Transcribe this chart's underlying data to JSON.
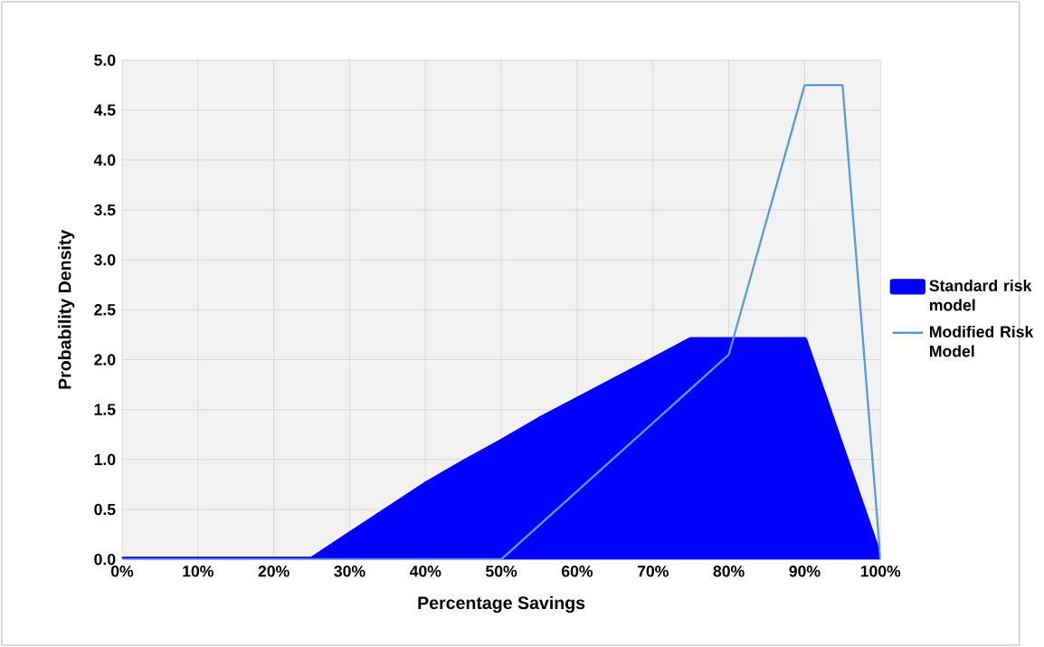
{
  "chart_data": {
    "type": "area",
    "xlabel": "Percentage Savings",
    "ylabel": "Probability Density",
    "xlim": [
      0,
      100
    ],
    "ylim": [
      0,
      5
    ],
    "xticks": [
      {
        "value": 0,
        "label": "0%"
      },
      {
        "value": 10,
        "label": "10%"
      },
      {
        "value": 20,
        "label": "20%"
      },
      {
        "value": 30,
        "label": "30%"
      },
      {
        "value": 40,
        "label": "40%"
      },
      {
        "value": 50,
        "label": "50%"
      },
      {
        "value": 60,
        "label": "60%"
      },
      {
        "value": 70,
        "label": "70%"
      },
      {
        "value": 80,
        "label": "80%"
      },
      {
        "value": 90,
        "label": "90%"
      },
      {
        "value": 100,
        "label": "100%"
      }
    ],
    "yticks": [
      {
        "value": 0,
        "label": "0.0"
      },
      {
        "value": 0.5,
        "label": "0.5"
      },
      {
        "value": 1,
        "label": "1.0"
      },
      {
        "value": 1.5,
        "label": "1.5"
      },
      {
        "value": 2,
        "label": "2.0"
      },
      {
        "value": 2.5,
        "label": "2.5"
      },
      {
        "value": 3,
        "label": "3.0"
      },
      {
        "value": 3.5,
        "label": "3.5"
      },
      {
        "value": 4,
        "label": "4.0"
      },
      {
        "value": 4.5,
        "label": "4.5"
      },
      {
        "value": 5,
        "label": "5.0"
      }
    ],
    "grid": true,
    "legend": "right",
    "series": [
      {
        "name": "Standard risk model",
        "color": "#0000ff",
        "x": [
          0,
          25,
          30,
          35,
          40,
          45,
          50,
          55,
          60,
          65,
          70,
          75,
          90,
          100
        ],
        "values": [
          0,
          0,
          0.25,
          0.5,
          0.75,
          0.97,
          1.18,
          1.4,
          1.6,
          1.8,
          2.0,
          2.2,
          2.2,
          0
        ]
      },
      {
        "name": "Modified Risk Model",
        "type": "line",
        "color": "#5b9bd5",
        "x": [
          0,
          50,
          80,
          90,
          95,
          100
        ],
        "values": [
          0,
          0,
          2.05,
          4.75,
          4.75,
          0
        ]
      }
    ]
  }
}
